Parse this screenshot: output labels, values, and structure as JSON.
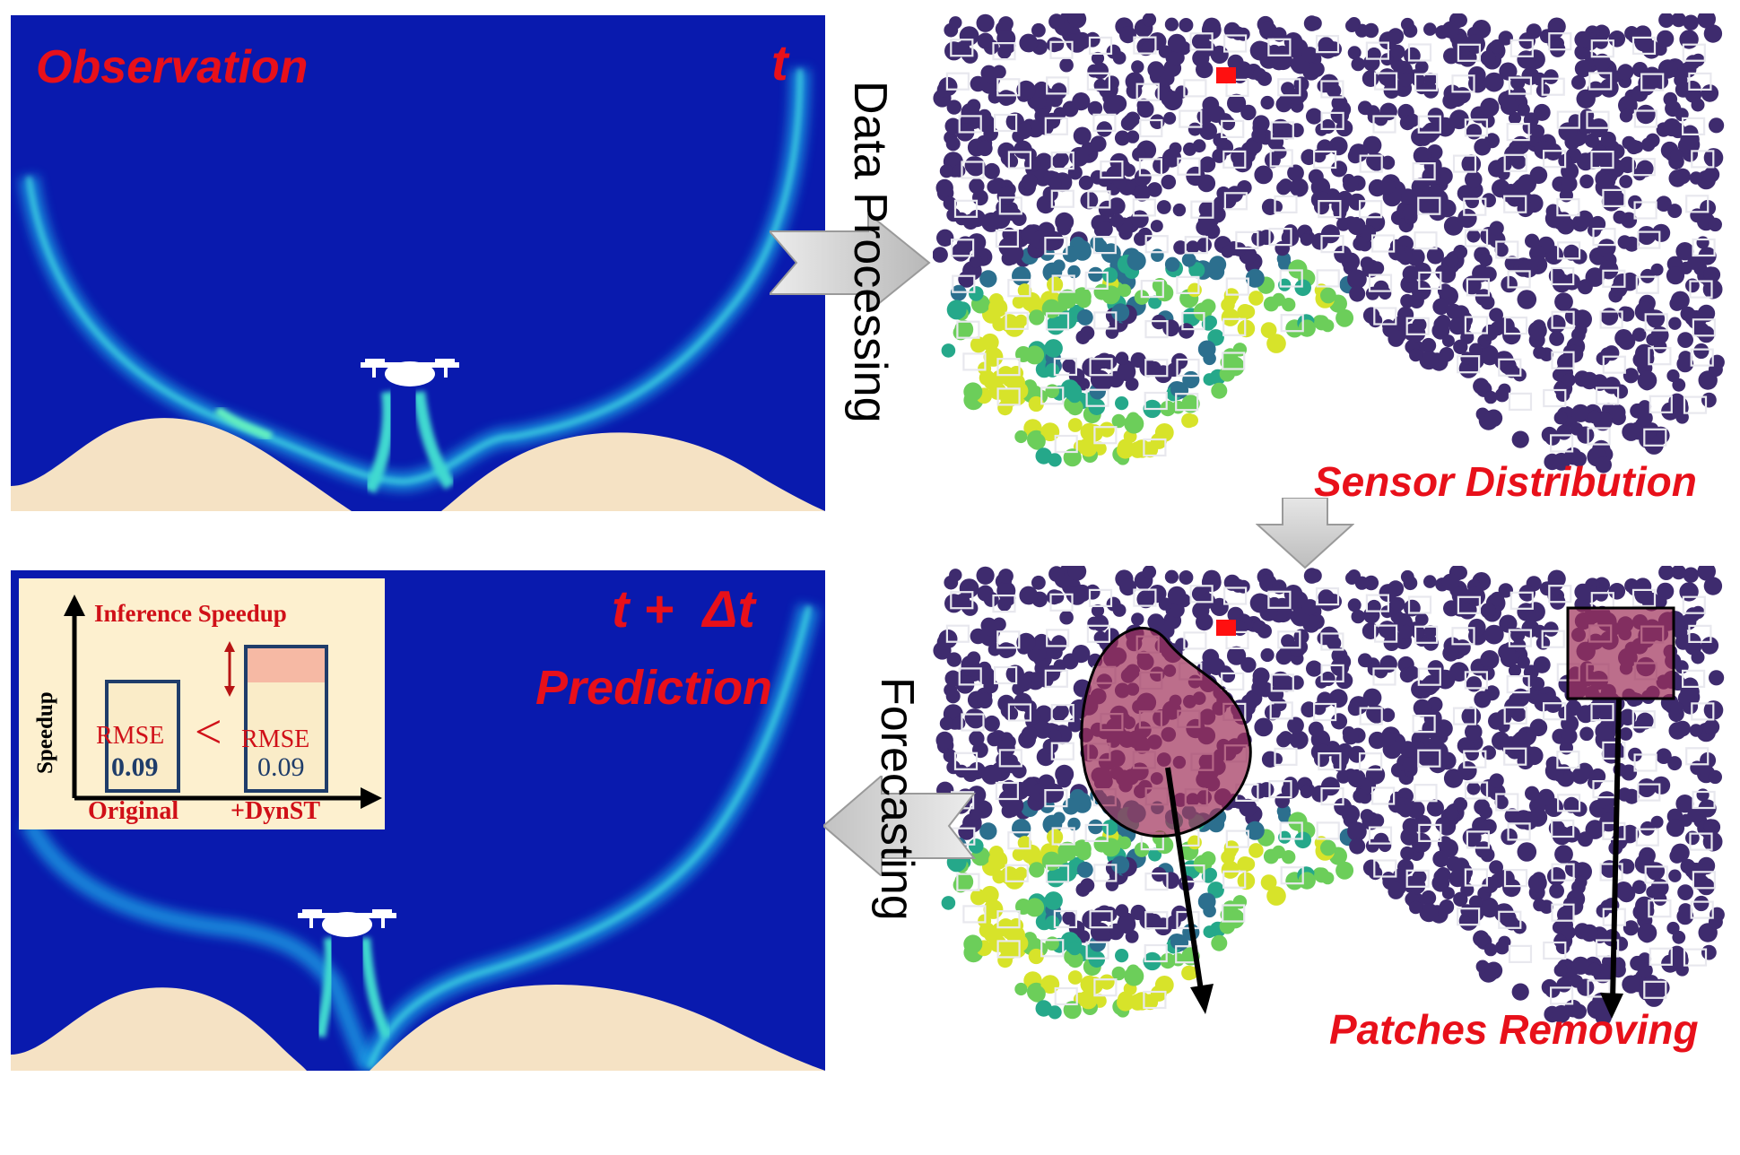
{
  "panels": {
    "observation": {
      "label": "Observation",
      "time": "t"
    },
    "prediction": {
      "time": "t +  Δt",
      "label": "Prediction"
    },
    "sensor": {
      "label": "Sensor Distribution"
    },
    "patches": {
      "label": "Patches Removing"
    }
  },
  "arrows": {
    "data_processing": "Data Processing",
    "forecasting": "Forecasting"
  },
  "inset": {
    "title": "Inference Speedup",
    "y_axis": "Speedup",
    "original": {
      "metric": "RMSE",
      "value": "0.09",
      "category": "Original"
    },
    "comparison": "<",
    "dynst": {
      "metric": "RMSE",
      "value": "0.09",
      "category": "+DynST"
    }
  },
  "colors": {
    "flow_background": "#0a1fb5",
    "sand": "#f5e2c4",
    "sensor_background": "#3e1e63",
    "label_red": "#e8101a",
    "removed_patch": "#a0305a"
  }
}
